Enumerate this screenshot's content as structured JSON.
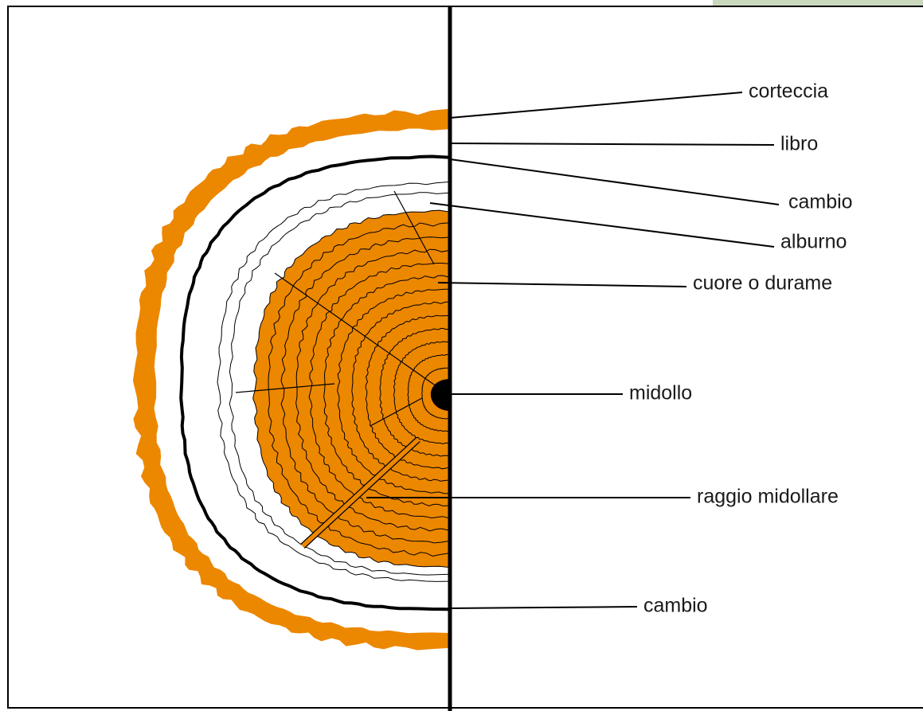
{
  "labels": [
    "corteccia",
    "libro",
    "cambio",
    "alburno",
    "cuore o durame",
    "midollo",
    "raggio midollare",
    "cambio"
  ]
}
